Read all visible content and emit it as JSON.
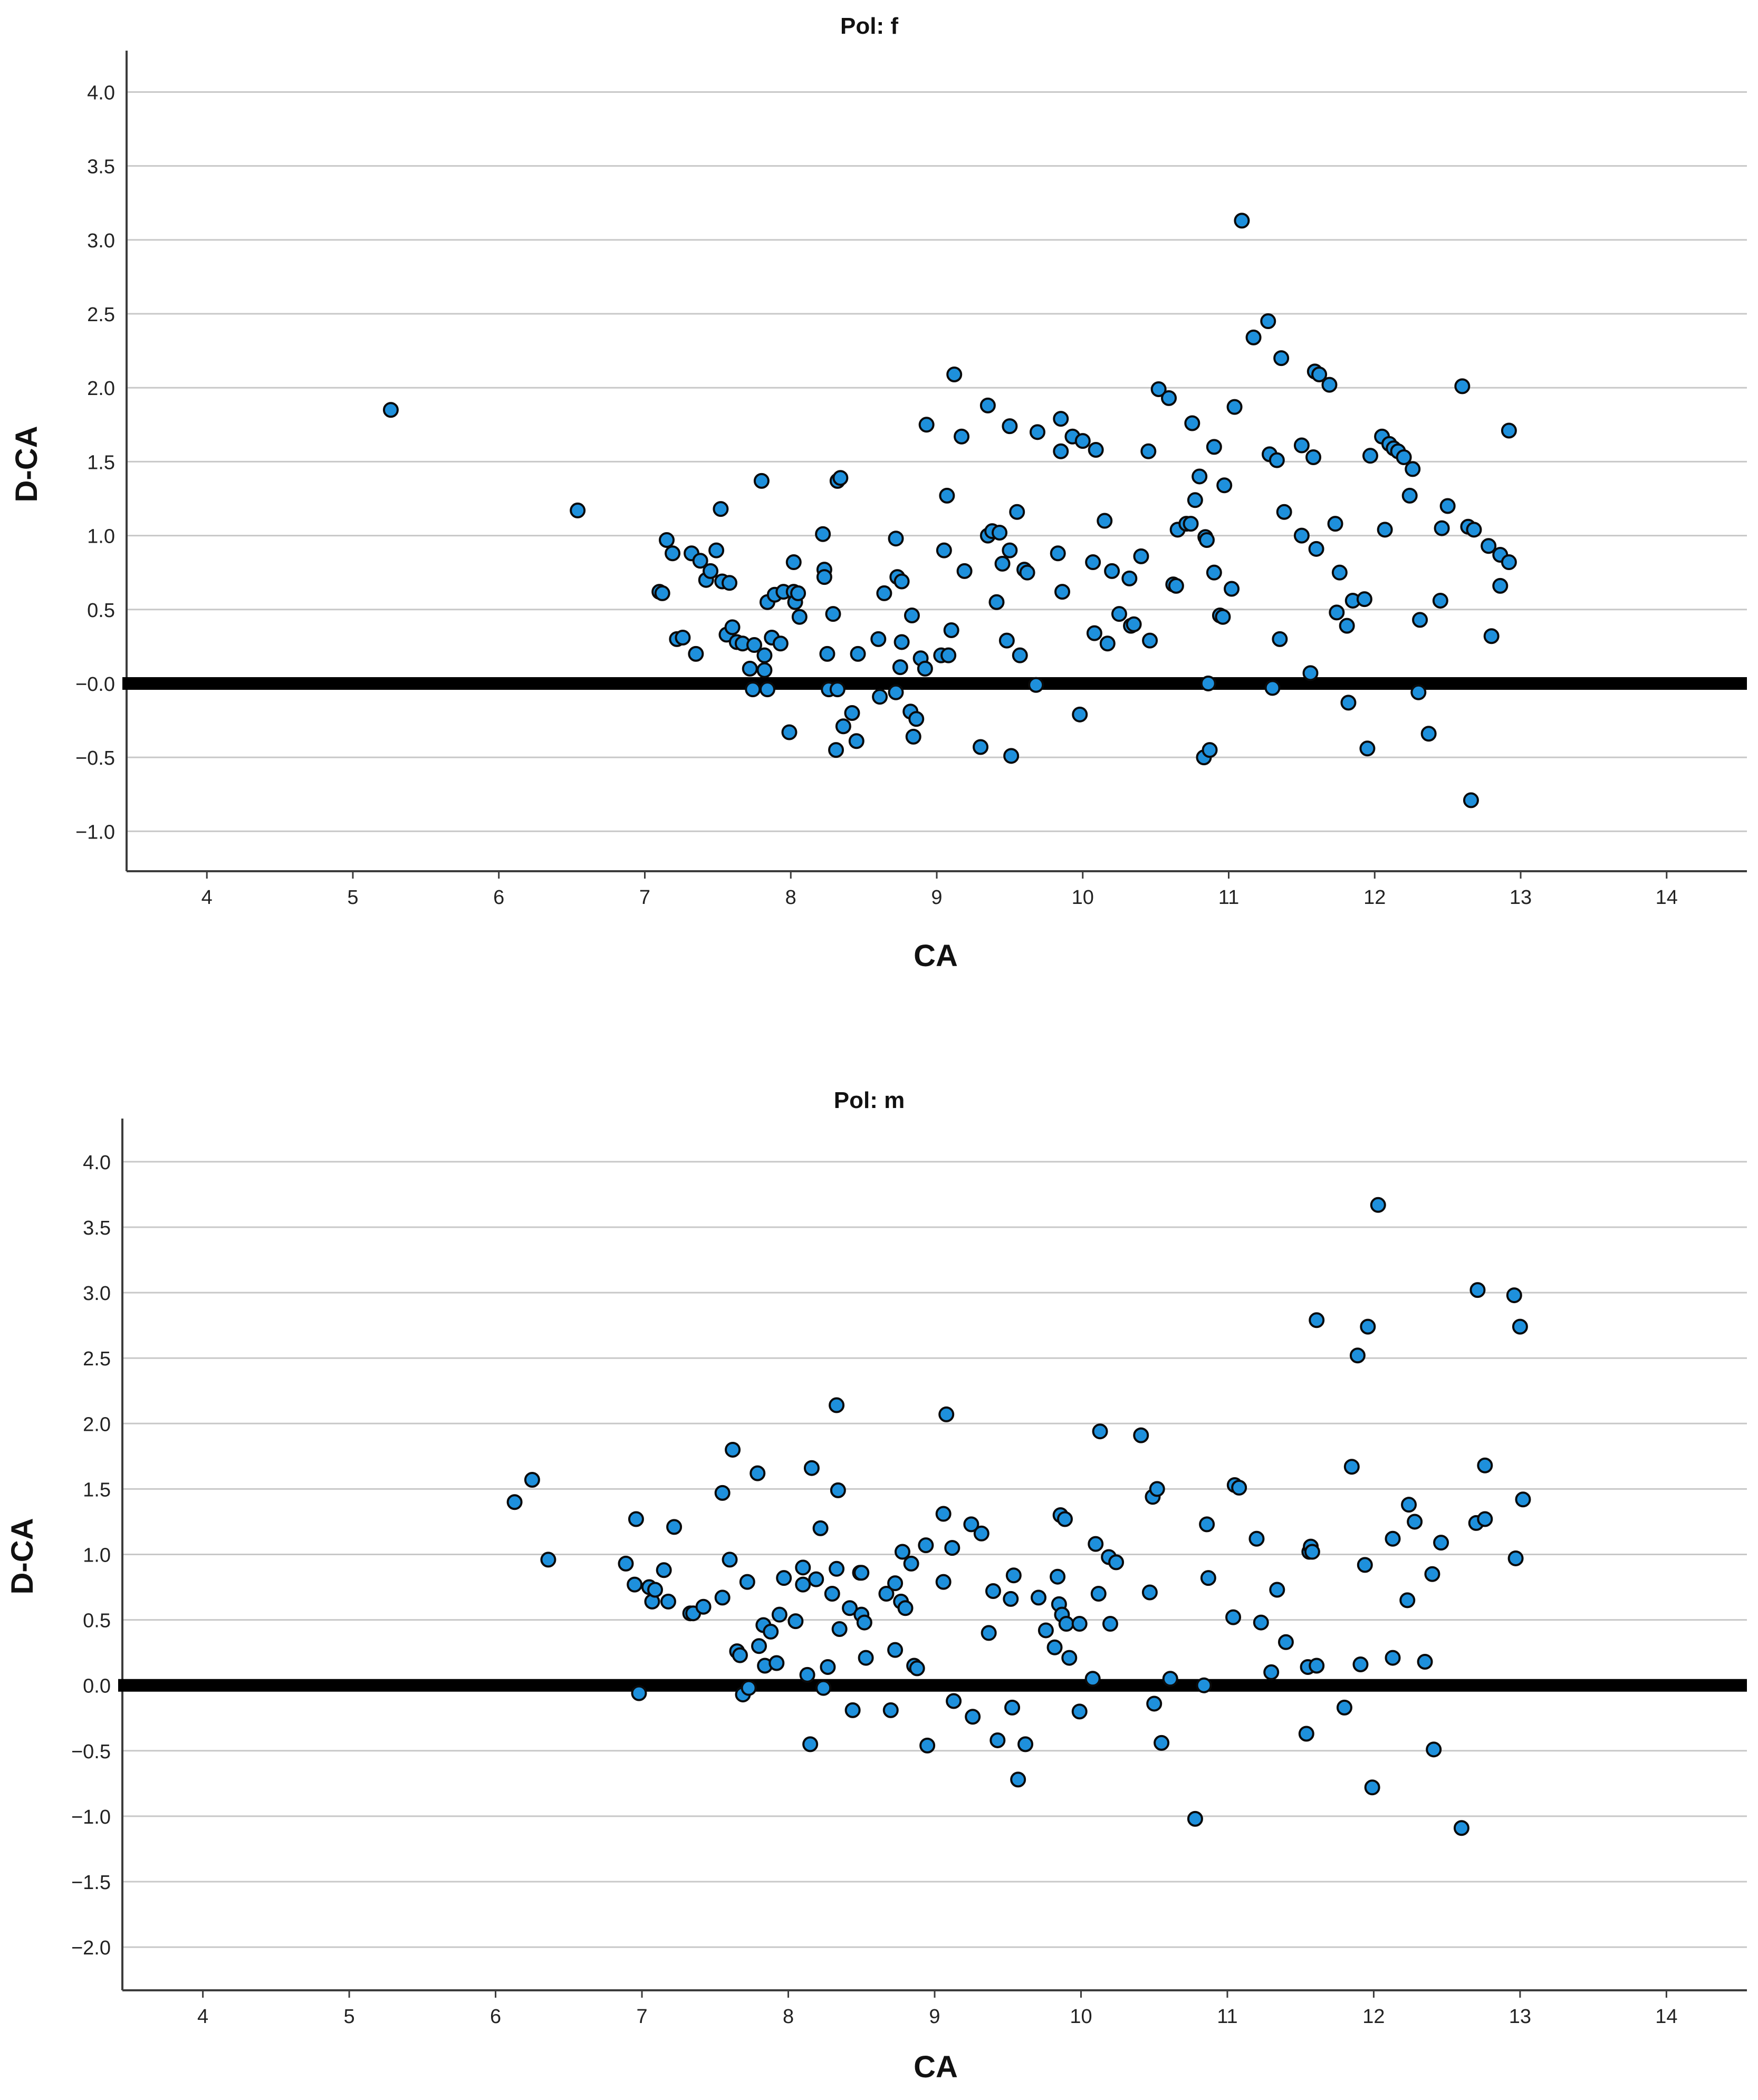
{
  "colors": {
    "point_fill": "#1e90dc",
    "point_stroke": "#0a0a0a",
    "grid": "#c8c8c8",
    "axis": "#3c3c3c",
    "reference_line": "#000000"
  },
  "chart_data": [
    {
      "type": "scatter",
      "title": "Pol: f",
      "xlabel": "CA",
      "ylabel": "D-CA",
      "xlim": [
        3.45,
        14.55
      ],
      "ylim": [
        -1.27,
        4.28
      ],
      "xticks": [
        4,
        5,
        6,
        7,
        8,
        9,
        10,
        11,
        12,
        13,
        14
      ],
      "yticks": [
        -1.0,
        -0.5,
        0.0,
        0.5,
        1.0,
        1.5,
        2.0,
        2.5,
        3.0,
        3.5,
        4.0
      ],
      "ytick_labels": [
        "−1.0",
        "−0.5",
        "−0.0",
        "0.5",
        "1.0",
        "1.5",
        "2.0",
        "2.5",
        "3.0",
        "3.5",
        "4.0"
      ],
      "grid": "horizontal",
      "reference_line_y": 0.0,
      "points": [
        [
          5.26,
          1.85
        ],
        [
          6.54,
          1.17
        ],
        [
          7.1,
          0.62
        ],
        [
          7.12,
          0.61
        ],
        [
          7.15,
          0.97
        ],
        [
          7.19,
          0.88
        ],
        [
          7.22,
          0.3
        ],
        [
          7.26,
          0.31
        ],
        [
          7.32,
          0.88
        ],
        [
          7.35,
          0.2
        ],
        [
          7.38,
          0.83
        ],
        [
          7.42,
          0.7
        ],
        [
          7.45,
          0.76
        ],
        [
          7.49,
          0.9
        ],
        [
          7.52,
          1.18
        ],
        [
          7.53,
          0.69
        ],
        [
          7.56,
          0.33
        ],
        [
          7.58,
          0.68
        ],
        [
          7.6,
          0.38
        ],
        [
          7.63,
          0.28
        ],
        [
          7.67,
          0.27
        ],
        [
          7.72,
          0.1
        ],
        [
          7.74,
          -0.04
        ],
        [
          7.75,
          0.26
        ],
        [
          7.8,
          1.37
        ],
        [
          7.82,
          0.19
        ],
        [
          7.82,
          0.09
        ],
        [
          7.84,
          -0.04
        ],
        [
          7.84,
          0.55
        ],
        [
          7.87,
          0.31
        ],
        [
          7.89,
          0.6
        ],
        [
          7.93,
          0.27
        ],
        [
          7.95,
          0.62
        ],
        [
          7.99,
          -0.33
        ],
        [
          8.02,
          0.82
        ],
        [
          8.02,
          0.62
        ],
        [
          8.03,
          0.55
        ],
        [
          8.05,
          0.61
        ],
        [
          8.06,
          0.45
        ],
        [
          8.22,
          1.01
        ],
        [
          8.23,
          0.77
        ],
        [
          8.23,
          0.72
        ],
        [
          8.25,
          0.2
        ],
        [
          8.26,
          -0.04
        ],
        [
          8.29,
          0.47
        ],
        [
          8.31,
          -0.45
        ],
        [
          8.32,
          -0.04
        ],
        [
          8.32,
          1.37
        ],
        [
          8.34,
          1.39
        ],
        [
          8.36,
          -0.29
        ],
        [
          8.42,
          -0.2
        ],
        [
          8.45,
          -0.39
        ],
        [
          8.46,
          0.2
        ],
        [
          8.6,
          0.3
        ],
        [
          8.61,
          -0.09
        ],
        [
          8.64,
          0.61
        ],
        [
          8.72,
          0.98
        ],
        [
          8.72,
          -0.06
        ],
        [
          8.73,
          0.72
        ],
        [
          8.75,
          0.11
        ],
        [
          8.76,
          0.69
        ],
        [
          8.76,
          0.28
        ],
        [
          8.82,
          -0.19
        ],
        [
          8.83,
          0.46
        ],
        [
          8.84,
          -0.36
        ],
        [
          8.86,
          -0.24
        ],
        [
          8.89,
          0.17
        ],
        [
          8.92,
          0.1
        ],
        [
          8.93,
          1.75
        ],
        [
          9.03,
          0.19
        ],
        [
          9.05,
          0.9
        ],
        [
          9.07,
          1.27
        ],
        [
          9.08,
          0.19
        ],
        [
          9.1,
          0.36
        ],
        [
          9.12,
          2.09
        ],
        [
          9.17,
          1.67
        ],
        [
          9.19,
          0.76
        ],
        [
          9.3,
          -0.43
        ],
        [
          9.35,
          1.0
        ],
        [
          9.35,
          1.88
        ],
        [
          9.38,
          1.03
        ],
        [
          9.41,
          0.55
        ],
        [
          9.43,
          1.02
        ],
        [
          9.45,
          0.81
        ],
        [
          9.48,
          0.29
        ],
        [
          9.5,
          1.74
        ],
        [
          9.5,
          0.9
        ],
        [
          9.51,
          -0.49
        ],
        [
          9.55,
          1.16
        ],
        [
          9.57,
          0.19
        ],
        [
          9.6,
          0.77
        ],
        [
          9.62,
          0.75
        ],
        [
          9.68,
          -0.01
        ],
        [
          9.69,
          1.7
        ],
        [
          9.83,
          0.88
        ],
        [
          9.85,
          1.79
        ],
        [
          9.85,
          1.57
        ],
        [
          9.86,
          0.62
        ],
        [
          9.93,
          1.67
        ],
        [
          9.98,
          -0.21
        ],
        [
          10.0,
          1.64
        ],
        [
          10.07,
          0.82
        ],
        [
          10.08,
          0.34
        ],
        [
          10.09,
          1.58
        ],
        [
          10.15,
          1.1
        ],
        [
          10.17,
          0.27
        ],
        [
          10.2,
          0.76
        ],
        [
          10.25,
          0.47
        ],
        [
          10.32,
          0.71
        ],
        [
          10.33,
          0.39
        ],
        [
          10.35,
          0.4
        ],
        [
          10.4,
          0.86
        ],
        [
          10.45,
          1.57
        ],
        [
          10.46,
          0.29
        ],
        [
          10.52,
          1.99
        ],
        [
          10.59,
          1.93
        ],
        [
          10.62,
          0.67
        ],
        [
          10.64,
          0.66
        ],
        [
          10.65,
          1.04
        ],
        [
          10.71,
          1.08
        ],
        [
          10.74,
          1.08
        ],
        [
          10.75,
          1.76
        ],
        [
          10.77,
          1.24
        ],
        [
          10.8,
          1.4
        ],
        [
          10.83,
          -0.5
        ],
        [
          10.84,
          0.99
        ],
        [
          10.85,
          0.97
        ],
        [
          10.86,
          0.0
        ],
        [
          10.87,
          -0.45
        ],
        [
          10.9,
          0.75
        ],
        [
          10.9,
          1.6
        ],
        [
          10.94,
          0.46
        ],
        [
          10.96,
          0.45
        ],
        [
          10.97,
          1.34
        ],
        [
          11.02,
          0.64
        ],
        [
          11.04,
          1.87
        ],
        [
          11.09,
          3.13
        ],
        [
          11.17,
          2.34
        ],
        [
          11.27,
          2.45
        ],
        [
          11.28,
          1.55
        ],
        [
          11.3,
          -0.03
        ],
        [
          11.33,
          1.51
        ],
        [
          11.35,
          0.3
        ],
        [
          11.36,
          2.2
        ],
        [
          11.38,
          1.16
        ],
        [
          11.5,
          1.61
        ],
        [
          11.5,
          1.0
        ],
        [
          11.56,
          0.07
        ],
        [
          11.58,
          1.53
        ],
        [
          11.59,
          2.11
        ],
        [
          11.6,
          0.91
        ],
        [
          11.62,
          2.09
        ],
        [
          11.69,
          2.02
        ],
        [
          11.73,
          1.08
        ],
        [
          11.74,
          0.48
        ],
        [
          11.76,
          0.75
        ],
        [
          11.81,
          0.39
        ],
        [
          11.82,
          -0.13
        ],
        [
          11.85,
          0.56
        ],
        [
          11.93,
          0.57
        ],
        [
          11.95,
          -0.44
        ],
        [
          11.97,
          1.54
        ],
        [
          12.05,
          1.67
        ],
        [
          12.07,
          1.04
        ],
        [
          12.1,
          1.62
        ],
        [
          12.13,
          1.59
        ],
        [
          12.16,
          1.57
        ],
        [
          12.2,
          1.53
        ],
        [
          12.24,
          1.27
        ],
        [
          12.26,
          1.45
        ],
        [
          12.3,
          -0.06
        ],
        [
          12.31,
          0.43
        ],
        [
          12.37,
          -0.34
        ],
        [
          12.45,
          0.56
        ],
        [
          12.46,
          1.05
        ],
        [
          12.5,
          1.2
        ],
        [
          12.6,
          2.01
        ],
        [
          12.64,
          1.06
        ],
        [
          12.66,
          -0.79
        ],
        [
          12.68,
          1.04
        ],
        [
          12.78,
          0.93
        ],
        [
          12.8,
          0.32
        ],
        [
          12.86,
          0.66
        ],
        [
          12.86,
          0.87
        ],
        [
          12.92,
          0.82
        ],
        [
          12.92,
          1.71
        ]
      ]
    },
    {
      "type": "scatter",
      "title": "Pol: m",
      "xlabel": "CA",
      "ylabel": "D-CA",
      "xlim": [
        3.45,
        14.55
      ],
      "ylim": [
        -2.33,
        4.33
      ],
      "xticks": [
        4,
        5,
        6,
        7,
        8,
        9,
        10,
        11,
        12,
        13,
        14
      ],
      "yticks": [
        -2.0,
        -1.5,
        -1.0,
        -0.5,
        0.0,
        0.5,
        1.0,
        1.5,
        2.0,
        2.5,
        3.0,
        3.5,
        4.0
      ],
      "ytick_labels": [
        "−2.0",
        "−1.5",
        "−1.0",
        "−0.5",
        "0.0",
        "0.5",
        "1.0",
        "1.5",
        "2.0",
        "2.5",
        "3.0",
        "3.5",
        "4.0"
      ],
      "grid": "horizontal",
      "reference_line_y": 0.0,
      "points": [
        [
          6.13,
          1.4
        ],
        [
          6.25,
          1.57
        ],
        [
          6.36,
          0.96
        ],
        [
          6.89,
          0.93
        ],
        [
          6.95,
          0.77
        ],
        [
          6.96,
          1.27
        ],
        [
          6.98,
          -0.06
        ],
        [
          7.05,
          0.75
        ],
        [
          7.07,
          0.64
        ],
        [
          7.09,
          0.73
        ],
        [
          7.15,
          0.88
        ],
        [
          7.18,
          0.64
        ],
        [
          7.22,
          1.21
        ],
        [
          7.33,
          0.55
        ],
        [
          7.35,
          0.55
        ],
        [
          7.42,
          0.6
        ],
        [
          7.55,
          1.47
        ],
        [
          7.55,
          0.67
        ],
        [
          7.6,
          0.96
        ],
        [
          7.62,
          1.8
        ],
        [
          7.65,
          0.26
        ],
        [
          7.67,
          0.23
        ],
        [
          7.69,
          -0.07
        ],
        [
          7.72,
          0.79
        ],
        [
          7.73,
          -0.02
        ],
        [
          7.79,
          1.62
        ],
        [
          7.8,
          0.3
        ],
        [
          7.83,
          0.46
        ],
        [
          7.84,
          0.15
        ],
        [
          7.88,
          0.41
        ],
        [
          7.92,
          0.17
        ],
        [
          7.94,
          0.54
        ],
        [
          7.97,
          0.82
        ],
        [
          8.05,
          0.49
        ],
        [
          8.1,
          0.9
        ],
        [
          8.1,
          0.77
        ],
        [
          8.13,
          0.08
        ],
        [
          8.15,
          -0.45
        ],
        [
          8.16,
          1.66
        ],
        [
          8.19,
          0.81
        ],
        [
          8.22,
          1.2
        ],
        [
          8.24,
          -0.02
        ],
        [
          8.27,
          0.14
        ],
        [
          8.3,
          0.7
        ],
        [
          8.33,
          2.14
        ],
        [
          8.33,
          0.89
        ],
        [
          8.34,
          1.49
        ],
        [
          8.35,
          0.43
        ],
        [
          8.42,
          0.59
        ],
        [
          8.44,
          -0.19
        ],
        [
          8.49,
          0.86
        ],
        [
          8.5,
          0.86
        ],
        [
          8.5,
          0.54
        ],
        [
          8.52,
          0.48
        ],
        [
          8.53,
          0.21
        ],
        [
          8.67,
          0.7
        ],
        [
          8.7,
          -0.19
        ],
        [
          8.73,
          0.78
        ],
        [
          8.73,
          0.27
        ],
        [
          8.77,
          0.64
        ],
        [
          8.78,
          1.02
        ],
        [
          8.8,
          0.59
        ],
        [
          8.84,
          0.93
        ],
        [
          8.86,
          0.15
        ],
        [
          8.88,
          0.13
        ],
        [
          8.94,
          1.07
        ],
        [
          8.95,
          -0.46
        ],
        [
          9.06,
          1.31
        ],
        [
          9.06,
          0.79
        ],
        [
          9.08,
          2.07
        ],
        [
          9.12,
          1.05
        ],
        [
          9.13,
          -0.12
        ],
        [
          9.25,
          1.23
        ],
        [
          9.26,
          -0.24
        ],
        [
          9.32,
          1.16
        ],
        [
          9.37,
          0.4
        ],
        [
          9.4,
          0.72
        ],
        [
          9.43,
          -0.42
        ],
        [
          9.52,
          0.66
        ],
        [
          9.53,
          -0.17
        ],
        [
          9.54,
          0.84
        ],
        [
          9.57,
          -0.72
        ],
        [
          9.62,
          -0.45
        ],
        [
          9.71,
          0.67
        ],
        [
          9.76,
          0.42
        ],
        [
          9.82,
          0.29
        ],
        [
          9.84,
          0.83
        ],
        [
          9.85,
          0.62
        ],
        [
          9.86,
          1.3
        ],
        [
          9.87,
          0.54
        ],
        [
          9.89,
          1.27
        ],
        [
          9.9,
          0.47
        ],
        [
          9.92,
          0.21
        ],
        [
          9.99,
          0.47
        ],
        [
          9.99,
          -0.2
        ],
        [
          10.08,
          0.05
        ],
        [
          10.1,
          1.08
        ],
        [
          10.12,
          0.7
        ],
        [
          10.13,
          1.94
        ],
        [
          10.19,
          0.98
        ],
        [
          10.2,
          0.47
        ],
        [
          10.24,
          0.94
        ],
        [
          10.41,
          1.91
        ],
        [
          10.47,
          0.71
        ],
        [
          10.49,
          1.44
        ],
        [
          10.5,
          -0.14
        ],
        [
          10.52,
          1.5
        ],
        [
          10.55,
          -0.44
        ],
        [
          10.61,
          0.05
        ],
        [
          10.78,
          -1.02
        ],
        [
          10.84,
          0.0
        ],
        [
          10.86,
          1.23
        ],
        [
          10.87,
          0.82
        ],
        [
          11.04,
          0.52
        ],
        [
          11.05,
          1.53
        ],
        [
          11.08,
          1.51
        ],
        [
          11.2,
          1.12
        ],
        [
          11.23,
          0.48
        ],
        [
          11.3,
          0.1
        ],
        [
          11.34,
          0.73
        ],
        [
          11.4,
          0.33
        ],
        [
          11.54,
          -0.37
        ],
        [
          11.55,
          0.14
        ],
        [
          11.56,
          1.02
        ],
        [
          11.57,
          1.06
        ],
        [
          11.58,
          1.02
        ],
        [
          11.61,
          0.15
        ],
        [
          11.61,
          2.79
        ],
        [
          11.8,
          -0.17
        ],
        [
          11.85,
          1.67
        ],
        [
          11.89,
          2.52
        ],
        [
          11.91,
          0.16
        ],
        [
          11.94,
          0.92
        ],
        [
          11.96,
          2.74
        ],
        [
          11.99,
          -0.78
        ],
        [
          12.03,
          3.67
        ],
        [
          12.13,
          1.12
        ],
        [
          12.13,
          0.21
        ],
        [
          12.23,
          0.65
        ],
        [
          12.24,
          1.38
        ],
        [
          12.28,
          1.25
        ],
        [
          12.35,
          0.18
        ],
        [
          12.4,
          0.85
        ],
        [
          12.41,
          -0.49
        ],
        [
          12.46,
          1.09
        ],
        [
          12.6,
          -1.09
        ],
        [
          12.7,
          1.24
        ],
        [
          12.71,
          3.02
        ],
        [
          12.76,
          1.27
        ],
        [
          12.76,
          1.68
        ],
        [
          12.96,
          2.98
        ],
        [
          12.97,
          0.97
        ],
        [
          13.0,
          2.74
        ],
        [
          13.02,
          1.42
        ]
      ]
    }
  ]
}
